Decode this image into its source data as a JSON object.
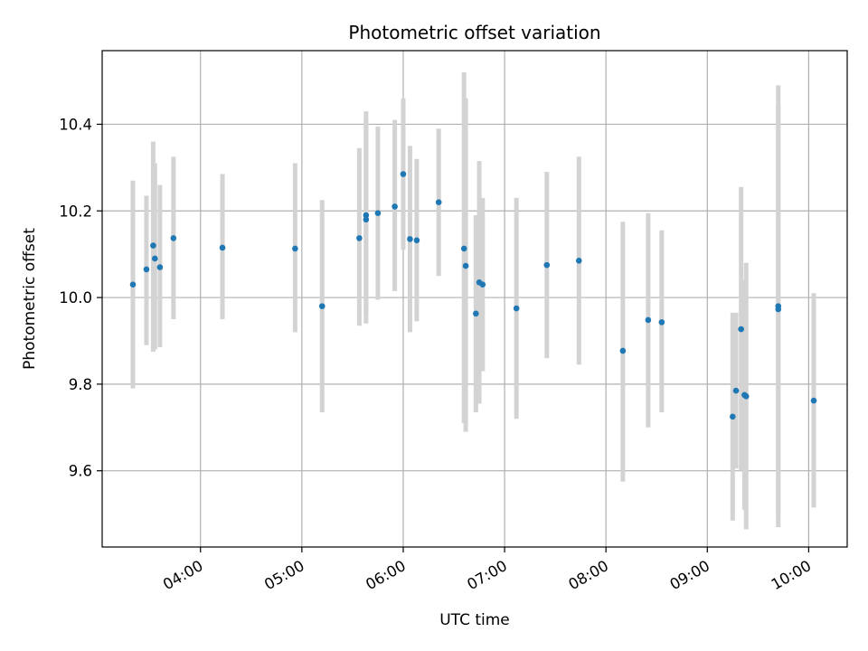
{
  "chart_data": {
    "type": "scatter",
    "title": "Photometric offset variation",
    "xlabel": "UTC time",
    "ylabel": "Photometric offset",
    "x_tick_labels": [
      "04:00",
      "05:00",
      "06:00",
      "07:00",
      "08:00",
      "09:00",
      "10:00"
    ],
    "x_tick_values_hours": [
      4,
      5,
      6,
      7,
      8,
      9,
      10
    ],
    "y_tick_values": [
      9.6,
      9.8,
      10.0,
      10.2,
      10.4
    ],
    "y_tick_labels": [
      "9.6",
      "9.8",
      "10.0",
      "10.2",
      "10.4"
    ],
    "xlim_hours": [
      3.03,
      10.38
    ],
    "ylim": [
      9.424,
      10.57
    ],
    "grid": true,
    "colors": {
      "point": "#1f77b4",
      "errorbar": "#d3d3d3",
      "grid": "#b0b0b0",
      "axes": "#000000"
    },
    "points": [
      {
        "time": "03:20",
        "y": 10.03,
        "err_low": 9.79,
        "err_high": 10.27
      },
      {
        "time": "03:28",
        "y": 10.065,
        "err_low": 9.89,
        "err_high": 10.235
      },
      {
        "time": "03:32",
        "y": 10.12,
        "err_low": 9.875,
        "err_high": 10.36
      },
      {
        "time": "03:33",
        "y": 10.09,
        "err_low": 9.88,
        "err_high": 10.31
      },
      {
        "time": "03:36",
        "y": 10.07,
        "err_low": 9.885,
        "err_high": 10.26
      },
      {
        "time": "03:44",
        "y": 10.137,
        "err_low": 9.95,
        "err_high": 10.325
      },
      {
        "time": "04:13",
        "y": 10.115,
        "err_low": 9.95,
        "err_high": 10.285
      },
      {
        "time": "04:56",
        "y": 10.113,
        "err_low": 9.92,
        "err_high": 10.31
      },
      {
        "time": "05:12",
        "y": 9.98,
        "err_low": 9.735,
        "err_high": 10.225
      },
      {
        "time": "05:34",
        "y": 10.137,
        "err_low": 9.935,
        "err_high": 10.345
      },
      {
        "time": "05:38",
        "y": 10.18,
        "err_low": 9.94,
        "err_high": 10.43
      },
      {
        "time": "05:38",
        "y": 10.19,
        "err_low": 9.96,
        "err_high": 10.41
      },
      {
        "time": "05:45",
        "y": 10.195,
        "err_low": 9.995,
        "err_high": 10.395
      },
      {
        "time": "05:55",
        "y": 10.21,
        "err_low": 10.015,
        "err_high": 10.41
      },
      {
        "time": "06:00",
        "y": 10.285,
        "err_low": 10.11,
        "err_high": 10.46
      },
      {
        "time": "06:04",
        "y": 10.135,
        "err_low": 9.92,
        "err_high": 10.35
      },
      {
        "time": "06:08",
        "y": 10.132,
        "err_low": 9.945,
        "err_high": 10.32
      },
      {
        "time": "06:21",
        "y": 10.22,
        "err_low": 10.05,
        "err_high": 10.39
      },
      {
        "time": "06:36",
        "y": 10.113,
        "err_low": 9.71,
        "err_high": 10.52
      },
      {
        "time": "06:37",
        "y": 10.073,
        "err_low": 9.69,
        "err_high": 10.46
      },
      {
        "time": "06:43",
        "y": 9.963,
        "err_low": 9.735,
        "err_high": 10.19
      },
      {
        "time": "06:45",
        "y": 10.035,
        "err_low": 9.755,
        "err_high": 10.315
      },
      {
        "time": "06:47",
        "y": 10.03,
        "err_low": 9.83,
        "err_high": 10.23
      },
      {
        "time": "07:07",
        "y": 9.975,
        "err_low": 9.72,
        "err_high": 10.23
      },
      {
        "time": "07:25",
        "y": 10.075,
        "err_low": 9.86,
        "err_high": 10.29
      },
      {
        "time": "07:44",
        "y": 10.085,
        "err_low": 9.845,
        "err_high": 10.325
      },
      {
        "time": "08:10",
        "y": 9.877,
        "err_low": 9.575,
        "err_high": 10.175
      },
      {
        "time": "08:25",
        "y": 9.948,
        "err_low": 9.7,
        "err_high": 10.195
      },
      {
        "time": "08:33",
        "y": 9.943,
        "err_low": 9.735,
        "err_high": 10.155
      },
      {
        "time": "09:15",
        "y": 9.725,
        "err_low": 9.485,
        "err_high": 9.965
      },
      {
        "time": "09:17",
        "y": 9.785,
        "err_low": 9.605,
        "err_high": 9.965
      },
      {
        "time": "09:20",
        "y": 9.927,
        "err_low": 9.6,
        "err_high": 10.255
      },
      {
        "time": "09:22",
        "y": 9.775,
        "err_low": 9.51,
        "err_high": 10.04
      },
      {
        "time": "09:23",
        "y": 9.772,
        "err_low": 9.465,
        "err_high": 10.08
      },
      {
        "time": "09:42",
        "y": 9.98,
        "err_low": 9.47,
        "err_high": 10.49
      },
      {
        "time": "09:42",
        "y": 9.973,
        "err_low": 9.5,
        "err_high": 10.445
      },
      {
        "time": "10:03",
        "y": 9.762,
        "err_low": 9.515,
        "err_high": 10.01
      }
    ]
  }
}
